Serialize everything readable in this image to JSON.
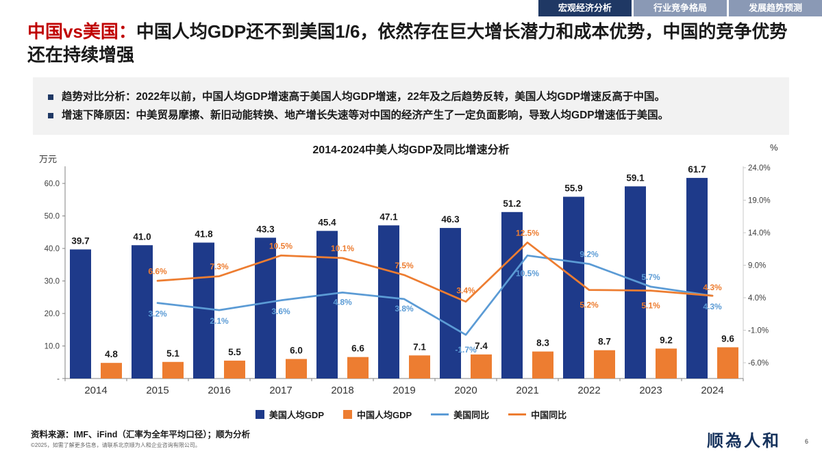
{
  "tabs": [
    {
      "label": "宏观经济分析",
      "active": true
    },
    {
      "label": "行业竞争格局",
      "active": false
    },
    {
      "label": "发展趋势预测",
      "active": false
    }
  ],
  "title": {
    "highlight": "中国vs美国：",
    "rest": "中国人均GDP还不到美国1/6，依然存在巨大增长潜力和成本优势，中国的竞争优势还在持续增强"
  },
  "bullets": [
    {
      "lead": "趋势对比分析：",
      "text": "2022年以前，中国人均GDP增速高于美国人均GDP增速，22年及之后趋势反转，美国人均GDP增速反高于中国。"
    },
    {
      "lead": "增速下降原因：",
      "text": "中美贸易摩擦、新旧动能转换、地产增长失速等对中国的经济产生了一定负面影响，导致人均GDP增速低于美国。"
    }
  ],
  "chart_data": {
    "type": "combo-bar-line",
    "title": "2014-2024中美人均GDP及同比增速分析",
    "categories": [
      "2014",
      "2015",
      "2016",
      "2017",
      "2018",
      "2019",
      "2020",
      "2021",
      "2022",
      "2023",
      "2024"
    ],
    "left_axis": {
      "unit": "万元",
      "max": 65,
      "tick_values": [
        60,
        50,
        40,
        30,
        20,
        10,
        0
      ],
      "tick_labels": [
        "60.0",
        "50.0",
        "40.0",
        "30.0",
        "20.0",
        "10.0",
        "-"
      ]
    },
    "right_axis": {
      "unit": "%",
      "tick_values": [
        24,
        19,
        14,
        9,
        4,
        -1,
        -6
      ],
      "tick_labels": [
        "24.0%",
        "19.0%",
        "14.0%",
        "9.0%",
        "4.0%",
        "-1.0%",
        "-6.0%"
      ]
    },
    "series": [
      {
        "name": "美国人均GDP",
        "type": "bar",
        "color": "#1e3a8a",
        "values": [
          39.7,
          41.0,
          41.8,
          43.3,
          45.4,
          47.1,
          46.3,
          51.2,
          55.9,
          59.1,
          61.7
        ],
        "labels": [
          "39.7",
          "41.0",
          "41.8",
          "43.3",
          "45.4",
          "47.1",
          "46.3",
          "51.2",
          "55.9",
          "59.1",
          "61.7"
        ]
      },
      {
        "name": "中国人均GDP",
        "type": "bar",
        "color": "#ED7D31",
        "values": [
          4.8,
          5.1,
          5.5,
          6.0,
          6.6,
          7.1,
          7.4,
          8.3,
          8.7,
          9.2,
          9.6
        ],
        "labels": [
          "4.8",
          "5.1",
          "5.5",
          "6.0",
          "6.6",
          "7.1",
          "7.4",
          "8.3",
          "8.7",
          "9.2",
          "9.6"
        ]
      },
      {
        "name": "美国同比",
        "type": "line",
        "color": "#5B9BD5",
        "values": [
          null,
          3.2,
          2.1,
          3.6,
          4.8,
          3.8,
          -1.7,
          10.5,
          9.2,
          5.7,
          4.3
        ],
        "labels": [
          "",
          "3.2%",
          "2.1%",
          "3.6%",
          "4.8%",
          "3.8%",
          "-1.7%",
          "10.5%",
          "9.2%",
          "5.7%",
          "4.3%"
        ]
      },
      {
        "name": "中国同比",
        "type": "line",
        "color": "#ED7D31",
        "values": [
          null,
          6.6,
          7.3,
          10.5,
          10.1,
          7.5,
          3.4,
          12.5,
          5.2,
          5.1,
          4.3
        ],
        "labels": [
          "",
          "6.6%",
          "7.3%",
          "10.5%",
          "10.1%",
          "7.5%",
          "3.4%",
          "12.5%",
          "5.2%",
          "5.1%",
          "4.3%"
        ]
      }
    ],
    "legend_position": "bottom",
    "grid": false
  },
  "footer": {
    "source": "资料来源：IMF、iFind（汇率为全年平均口径）；顺为分析",
    "copyright": "©2025，如需了解更多信息，请联系北京顺为人和企业咨询有限公司。",
    "logo": "顺為人和",
    "page": "6"
  },
  "colors": {
    "us_bar": "#1e3a8a",
    "cn_bar": "#ED7D31",
    "us_line": "#5B9BD5",
    "cn_line": "#ED7D31",
    "tab_active": "#1F3864",
    "tab_inactive": "#8A99B5",
    "title_red": "#C00000",
    "bullet_box_bg": "#F2F2F2"
  }
}
